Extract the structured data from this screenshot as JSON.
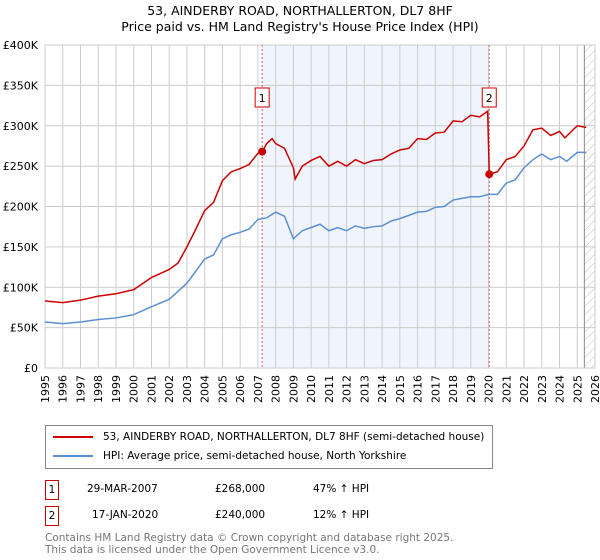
{
  "chart_data": {
    "type": "line",
    "title": "53, AINDERBY ROAD, NORTHALLERTON, DL7 8HF",
    "subtitle": "Price paid vs. HM Land Registry's House Price Index (HPI)",
    "xlim": [
      1995,
      2026
    ],
    "ylim": [
      0,
      400000
    ],
    "yticks": [
      "£0",
      "£50K",
      "£100K",
      "£150K",
      "£200K",
      "£250K",
      "£300K",
      "£350K",
      "£400K"
    ],
    "ytick_values": [
      0,
      50000,
      100000,
      150000,
      200000,
      250000,
      300000,
      350000,
      400000
    ],
    "xticks": [
      "1995",
      "1996",
      "1997",
      "1998",
      "1999",
      "2000",
      "2001",
      "2002",
      "2003",
      "2004",
      "2005",
      "2006",
      "2007",
      "2008",
      "2009",
      "2010",
      "2011",
      "2012",
      "2013",
      "2014",
      "2015",
      "2016",
      "2017",
      "2018",
      "2019",
      "2020",
      "2021",
      "2022",
      "2023",
      "2024",
      "2025",
      "2026"
    ],
    "grid": true,
    "series": [
      {
        "name": "53, AINDERBY ROAD, NORTHALLERTON, DL7 8HF (semi-detached house)",
        "color": "#cc0000",
        "x": [
          1995,
          1996,
          1997,
          1998,
          1999,
          2000,
          2001,
          2002,
          2002.5,
          2003,
          2003.5,
          2004,
          2004.5,
          2005,
          2005.5,
          2006,
          2006.5,
          2007,
          2007.24,
          2007.5,
          2007.8,
          2008,
          2008.5,
          2009,
          2009.1,
          2009.5,
          2010,
          2010.5,
          2011,
          2011.5,
          2012,
          2012.5,
          2013,
          2013.5,
          2014,
          2014.5,
          2015,
          2015.5,
          2016,
          2016.5,
          2017,
          2017.5,
          2018,
          2018.5,
          2019,
          2019.5,
          2019.95,
          2020.04,
          2020.5,
          2021,
          2021.5,
          2022,
          2022.5,
          2023,
          2023.5,
          2024,
          2024.3,
          2025,
          2025.5
        ],
        "y": [
          83,
          81,
          84,
          89,
          92,
          97,
          112,
          122,
          130,
          150,
          172,
          195,
          205,
          232,
          243,
          247,
          252,
          266,
          268,
          278,
          284,
          278,
          272,
          248,
          234,
          250,
          257,
          262,
          250,
          256,
          250,
          258,
          253,
          257,
          258,
          265,
          270,
          272,
          284,
          283,
          291,
          292,
          306,
          305,
          313,
          311,
          318,
          240,
          243,
          258,
          262,
          275,
          295,
          297,
          288,
          293,
          285,
          300,
          298
        ]
      },
      {
        "name": "HPI: Average price, semi-detached house, North Yorkshire",
        "color": "#5b8fd4",
        "x": [
          1995,
          1996,
          1997,
          1998,
          1999,
          2000,
          2001,
          2002,
          2003,
          2004,
          2004.5,
          2005,
          2005.5,
          2006,
          2006.5,
          2007,
          2007.5,
          2008,
          2008.5,
          2009,
          2009.5,
          2010,
          2010.5,
          2011,
          2011.5,
          2012,
          2012.5,
          2013,
          2013.5,
          2014,
          2014.5,
          2015,
          2016,
          2016.5,
          2017,
          2017.5,
          2018,
          2018.5,
          2019,
          2019.5,
          2020,
          2020.5,
          2021,
          2021.5,
          2022,
          2022.5,
          2023,
          2023.5,
          2024,
          2024.4,
          2025,
          2025.5
        ],
        "y": [
          57,
          55,
          57,
          60,
          62,
          66,
          76,
          85,
          105,
          135,
          140,
          160,
          165,
          168,
          172,
          184,
          186,
          193,
          188,
          160,
          170,
          174,
          178,
          170,
          174,
          170,
          176,
          173,
          175,
          176,
          182,
          185,
          193,
          194,
          199,
          200,
          208,
          210,
          212,
          212,
          215,
          215,
          229,
          233,
          248,
          258,
          265,
          258,
          262,
          256,
          267,
          267
        ]
      }
    ],
    "y_units": "thousands GBP",
    "annotations": [
      {
        "label": "1",
        "x": 2007.24,
        "y": 268
      },
      {
        "label": "2",
        "x": 2020.04,
        "y": 240
      }
    ],
    "shaded_range": [
      2007.24,
      2020.04
    ],
    "forecast_start": 2025.4
  },
  "legend": {
    "item1": "53, AINDERBY ROAD, NORTHALLERTON, DL7 8HF (semi-detached house)",
    "item2": "HPI: Average price, semi-detached house, North Yorkshire"
  },
  "sales": [
    {
      "num": "1",
      "date": "29-MAR-2007",
      "price": "£268,000",
      "hpi": "47% ↑ HPI"
    },
    {
      "num": "2",
      "date": "17-JAN-2020",
      "price": "£240,000",
      "hpi": "12% ↑ HPI"
    }
  ],
  "footer": {
    "line1": "Contains HM Land Registry data © Crown copyright and database right 2025.",
    "line2": "This data is licensed under the Open Government Licence v3.0."
  }
}
